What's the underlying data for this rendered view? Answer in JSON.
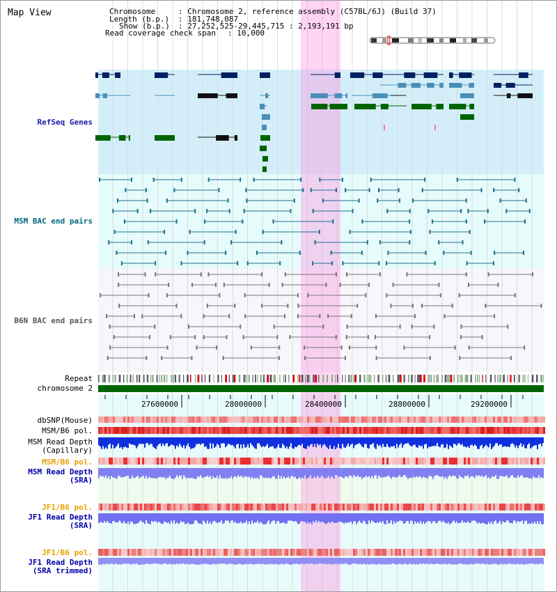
{
  "header": {
    "title": "Map View",
    "chromosome_label": "Chromosome",
    "chromosome_value": ": Chromosome 2, reference assembly (C57BL/6J) (Build 37)",
    "length_label": "Length (b.p.)",
    "length_value": ": 181,748,087",
    "show_label": "Show (b.p.)",
    "show_value": ": 27,252,525-29,445,715 : 2,193,191 bp",
    "coverage_label": "Read coverage check span",
    "coverage_value": ": 10,000"
  },
  "tracks": {
    "refseq": "RefSeq Genes",
    "msm_bac": "MSM BAC end pairs",
    "b6n_bac": "B6N BAC end pairs",
    "repeat": "Repeat",
    "chromosome": "chromosome 2",
    "dbsnp": "dbSNP(Mouse)",
    "msm_b6_pol_1": "MSM/B6 pol.",
    "msm_depth_cap_1": "MSM Read Depth",
    "msm_depth_cap_2": "(Capillary)",
    "msm_b6_pol_2": "MSM/B6 pol.",
    "msm_depth_sra_1": "MSM Read Depth",
    "msm_depth_sra_2": "(SRA)",
    "jf1_pol_1": "JF1/B6 pol.",
    "jf1_depth_1": "JF1 Read Depth",
    "jf1_depth_2": "(SRA)",
    "jf1_pol_2": "JF1/B6 pol.",
    "jf1_trim_1": "JF1 Read Depth",
    "jf1_trim_2": "(SRA trimmed)"
  },
  "axis": {
    "ticks": [
      "27600000",
      "28000000",
      "28400000",
      "28800000",
      "29200000"
    ]
  },
  "colors": {
    "refseq_label": "#1a1aa6",
    "msm_label": "#006680",
    "b6n_label": "#555555",
    "orange_label": "#e8a000",
    "blue_label": "#0000aa",
    "highlight": "#ff88dd",
    "gene_dark": "#002060",
    "gene_mid": "#4a8fb8",
    "gene_green": "#006400",
    "msm_pair": "#1f6f8f",
    "b6n_pair": "#777777"
  }
}
